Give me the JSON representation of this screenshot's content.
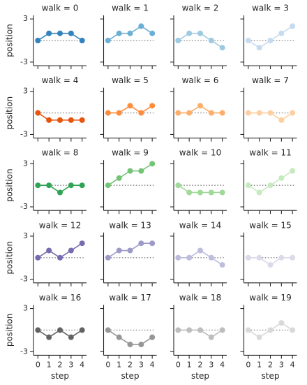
{
  "chart_data": [
    {
      "type": "line",
      "title": "walk = 0",
      "x": [
        0,
        1,
        2,
        3,
        4
      ],
      "values": [
        0,
        1,
        1,
        1,
        0
      ],
      "color": "#3182bd",
      "hline": 0,
      "xlim": [
        -0.4,
        4.4
      ],
      "ylim": [
        -3.5,
        3.5
      ],
      "xticks": [
        0,
        1,
        2,
        3,
        4
      ],
      "yticks": [
        -3,
        3
      ],
      "ylabel": "position"
    },
    {
      "type": "line",
      "title": "walk = 1",
      "x": [
        0,
        1,
        2,
        3,
        4
      ],
      "values": [
        0,
        1,
        1,
        2,
        1
      ],
      "color": "#6baed6",
      "hline": 0,
      "xlim": [
        -0.4,
        4.4
      ],
      "ylim": [
        -3.5,
        3.5
      ],
      "xticks": [
        0,
        1,
        2,
        3,
        4
      ],
      "yticks": [
        -3,
        3
      ]
    },
    {
      "type": "line",
      "title": "walk = 2",
      "x": [
        0,
        1,
        2,
        3,
        4
      ],
      "values": [
        0,
        1,
        1,
        0,
        -1
      ],
      "color": "#9ecae1",
      "hline": 0,
      "xlim": [
        -0.4,
        4.4
      ],
      "ylim": [
        -3.5,
        3.5
      ],
      "xticks": [
        0,
        1,
        2,
        3,
        4
      ],
      "yticks": [
        -3,
        3
      ]
    },
    {
      "type": "line",
      "title": "walk = 3",
      "x": [
        0,
        1,
        2,
        3,
        4
      ],
      "values": [
        0,
        -1,
        0,
        1,
        2
      ],
      "color": "#c6dbef",
      "hline": 0,
      "xlim": [
        -0.4,
        4.4
      ],
      "ylim": [
        -3.5,
        3.5
      ],
      "xticks": [
        0,
        1,
        2,
        3,
        4
      ],
      "yticks": [
        -3,
        3
      ]
    },
    {
      "type": "line",
      "title": "walk = 4",
      "x": [
        0,
        1,
        2,
        3,
        4
      ],
      "values": [
        0,
        -1,
        -1,
        -1,
        -1
      ],
      "color": "#e6550d",
      "hline": 0,
      "xlim": [
        -0.4,
        4.4
      ],
      "ylim": [
        -3.5,
        3.5
      ],
      "xticks": [
        0,
        1,
        2,
        3,
        4
      ],
      "yticks": [
        -3,
        3
      ],
      "ylabel": "position"
    },
    {
      "type": "line",
      "title": "walk = 5",
      "x": [
        0,
        1,
        2,
        3,
        4
      ],
      "values": [
        0,
        0,
        1,
        0,
        1
      ],
      "color": "#fd8d3c",
      "hline": 0,
      "xlim": [
        -0.4,
        4.4
      ],
      "ylim": [
        -3.5,
        3.5
      ],
      "xticks": [
        0,
        1,
        2,
        3,
        4
      ],
      "yticks": [
        -3,
        3
      ]
    },
    {
      "type": "line",
      "title": "walk = 6",
      "x": [
        0,
        1,
        2,
        3,
        4
      ],
      "values": [
        0,
        0,
        1,
        0,
        0
      ],
      "color": "#fdae6b",
      "hline": 0,
      "xlim": [
        -0.4,
        4.4
      ],
      "ylim": [
        -3.5,
        3.5
      ],
      "xticks": [
        0,
        1,
        2,
        3,
        4
      ],
      "yticks": [
        -3,
        3
      ]
    },
    {
      "type": "line",
      "title": "walk = 7",
      "x": [
        0,
        1,
        2,
        3,
        4
      ],
      "values": [
        0,
        0,
        0,
        -1,
        0
      ],
      "color": "#fdd0a2",
      "hline": 0,
      "xlim": [
        -0.4,
        4.4
      ],
      "ylim": [
        -3.5,
        3.5
      ],
      "xticks": [
        0,
        1,
        2,
        3,
        4
      ],
      "yticks": [
        -3,
        3
      ]
    },
    {
      "type": "line",
      "title": "walk = 8",
      "x": [
        0,
        1,
        2,
        3,
        4
      ],
      "values": [
        0,
        0,
        -1,
        0,
        0
      ],
      "color": "#31a354",
      "hline": 0,
      "xlim": [
        -0.4,
        4.4
      ],
      "ylim": [
        -3.5,
        3.5
      ],
      "xticks": [
        0,
        1,
        2,
        3,
        4
      ],
      "yticks": [
        -3,
        3
      ],
      "ylabel": "position"
    },
    {
      "type": "line",
      "title": "walk = 9",
      "x": [
        0,
        1,
        2,
        3,
        4
      ],
      "values": [
        0,
        1,
        2,
        2,
        3
      ],
      "color": "#74c476",
      "hline": 0,
      "xlim": [
        -0.4,
        4.4
      ],
      "ylim": [
        -3.5,
        3.5
      ],
      "xticks": [
        0,
        1,
        2,
        3,
        4
      ],
      "yticks": [
        -3,
        3
      ]
    },
    {
      "type": "line",
      "title": "walk = 10",
      "x": [
        0,
        1,
        2,
        3,
        4
      ],
      "values": [
        0,
        -1,
        -1,
        -1,
        -1
      ],
      "color": "#a1d99b",
      "hline": 0,
      "xlim": [
        -0.4,
        4.4
      ],
      "ylim": [
        -3.5,
        3.5
      ],
      "xticks": [
        0,
        1,
        2,
        3,
        4
      ],
      "yticks": [
        -3,
        3
      ]
    },
    {
      "type": "line",
      "title": "walk = 11",
      "x": [
        0,
        1,
        2,
        3,
        4
      ],
      "values": [
        0,
        -1,
        0,
        1,
        2
      ],
      "color": "#c7e9c0",
      "hline": 0,
      "xlim": [
        -0.4,
        4.4
      ],
      "ylim": [
        -3.5,
        3.5
      ],
      "xticks": [
        0,
        1,
        2,
        3,
        4
      ],
      "yticks": [
        -3,
        3
      ]
    },
    {
      "type": "line",
      "title": "walk = 12",
      "x": [
        0,
        1,
        2,
        3,
        4
      ],
      "values": [
        0,
        1,
        0,
        1,
        2
      ],
      "color": "#756bb1",
      "hline": 0,
      "xlim": [
        -0.4,
        4.4
      ],
      "ylim": [
        -3.5,
        3.5
      ],
      "xticks": [
        0,
        1,
        2,
        3,
        4
      ],
      "yticks": [
        -3,
        3
      ],
      "ylabel": "position"
    },
    {
      "type": "line",
      "title": "walk = 13",
      "x": [
        0,
        1,
        2,
        3,
        4
      ],
      "values": [
        0,
        1,
        1,
        2,
        2
      ],
      "color": "#9e9ac8",
      "hline": 0,
      "xlim": [
        -0.4,
        4.4
      ],
      "ylim": [
        -3.5,
        3.5
      ],
      "xticks": [
        0,
        1,
        2,
        3,
        4
      ],
      "yticks": [
        -3,
        3
      ]
    },
    {
      "type": "line",
      "title": "walk = 14",
      "x": [
        0,
        1,
        2,
        3,
        4
      ],
      "values": [
        0,
        0,
        1,
        0,
        -1
      ],
      "color": "#bcbddc",
      "hline": 0,
      "xlim": [
        -0.4,
        4.4
      ],
      "ylim": [
        -3.5,
        3.5
      ],
      "xticks": [
        0,
        1,
        2,
        3,
        4
      ],
      "yticks": [
        -3,
        3
      ]
    },
    {
      "type": "line",
      "title": "walk = 15",
      "x": [
        0,
        1,
        2,
        3,
        4
      ],
      "values": [
        0,
        0,
        -1,
        0,
        0
      ],
      "color": "#dadaeb",
      "hline": 0,
      "xlim": [
        -0.4,
        4.4
      ],
      "ylim": [
        -3.5,
        3.5
      ],
      "xticks": [
        0,
        1,
        2,
        3,
        4
      ],
      "yticks": [
        -3,
        3
      ]
    },
    {
      "type": "line",
      "title": "walk = 16",
      "x": [
        0,
        1,
        2,
        3,
        4
      ],
      "values": [
        0,
        -1,
        0,
        -1,
        0
      ],
      "color": "#636363",
      "hline": 0,
      "xlim": [
        -0.4,
        4.4
      ],
      "ylim": [
        -3.5,
        3.5
      ],
      "xticks": [
        0,
        1,
        2,
        3,
        4
      ],
      "yticks": [
        -3,
        3
      ],
      "ylabel": "position",
      "xlabel": "step"
    },
    {
      "type": "line",
      "title": "walk = 17",
      "x": [
        0,
        1,
        2,
        3,
        4
      ],
      "values": [
        0,
        -1,
        -2,
        -2,
        -1
      ],
      "color": "#969696",
      "hline": 0,
      "xlim": [
        -0.4,
        4.4
      ],
      "ylim": [
        -3.5,
        3.5
      ],
      "xticks": [
        0,
        1,
        2,
        3,
        4
      ],
      "yticks": [
        -3,
        3
      ],
      "xlabel": "step"
    },
    {
      "type": "line",
      "title": "walk = 18",
      "x": [
        0,
        1,
        2,
        3,
        4
      ],
      "values": [
        0,
        0,
        0,
        -1,
        0
      ],
      "color": "#bdbdbd",
      "hline": 0,
      "xlim": [
        -0.4,
        4.4
      ],
      "ylim": [
        -3.5,
        3.5
      ],
      "xticks": [
        0,
        1,
        2,
        3,
        4
      ],
      "yticks": [
        -3,
        3
      ],
      "xlabel": "step"
    },
    {
      "type": "line",
      "title": "walk = 19",
      "x": [
        0,
        1,
        2,
        3,
        4
      ],
      "values": [
        0,
        -1,
        0,
        1,
        0
      ],
      "color": "#d9d9d9",
      "hline": 0,
      "xlim": [
        -0.4,
        4.4
      ],
      "ylim": [
        -3.5,
        3.5
      ],
      "xticks": [
        0,
        1,
        2,
        3,
        4
      ],
      "yticks": [
        -3,
        3
      ],
      "xlabel": "step"
    }
  ]
}
